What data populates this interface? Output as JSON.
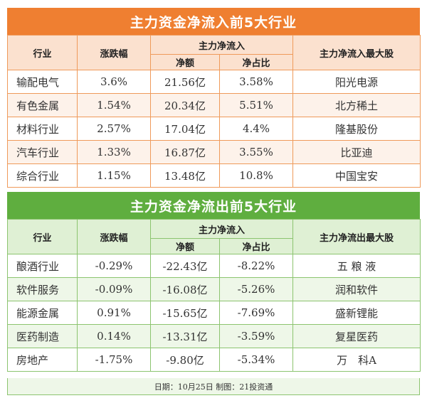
{
  "inflow": {
    "title": "主力资金净流入前5大行业",
    "headers": {
      "industry": "行业",
      "change": "涨跌幅",
      "group": "主力净流入",
      "net": "净额",
      "ratio": "净占比",
      "top_stock": "主力净流入最大股"
    },
    "rows": [
      {
        "industry": "输配电气",
        "change": "3.6%",
        "net": "21.56亿",
        "ratio": "3.58%",
        "stock": "阳光电源"
      },
      {
        "industry": "有色金属",
        "change": "1.54%",
        "net": "20.34亿",
        "ratio": "5.51%",
        "stock": "北方稀土"
      },
      {
        "industry": "材料行业",
        "change": "2.57%",
        "net": "17.04亿",
        "ratio": "4.4%",
        "stock": "隆基股份"
      },
      {
        "industry": "汽车行业",
        "change": "1.33%",
        "net": "16.87亿",
        "ratio": "3.55%",
        "stock": "比亚迪"
      },
      {
        "industry": "综合行业",
        "change": "1.15%",
        "net": "13.48亿",
        "ratio": "10.8%",
        "stock": "中国宝安"
      }
    ]
  },
  "outflow": {
    "title": "主力资金净流出前5大行业",
    "headers": {
      "industry": "行业",
      "change": "涨跌幅",
      "group": "主力净流入",
      "net": "净额",
      "ratio": "净占比",
      "top_stock": "主力净流出最大股"
    },
    "rows": [
      {
        "industry": "酿酒行业",
        "change": "-0.29%",
        "net": "-22.43亿",
        "ratio": "-8.22%",
        "stock": "五 粮 液"
      },
      {
        "industry": "软件服务",
        "change": "-0.09%",
        "net": "-16.08亿",
        "ratio": "-5.26%",
        "stock": "润和软件"
      },
      {
        "industry": "能源金属",
        "change": "0.91%",
        "net": "-15.65亿",
        "ratio": "-7.69%",
        "stock": "盛新锂能"
      },
      {
        "industry": "医药制造",
        "change": "0.14%",
        "net": "-13.31亿",
        "ratio": "-3.59%",
        "stock": "复星医药"
      },
      {
        "industry": "房地产",
        "change": "-1.75%",
        "net": "-9.80亿",
        "ratio": "-5.34%",
        "stock": "万　科A"
      }
    ]
  },
  "footer": "日期：10月25日  制图：21投资通",
  "colors": {
    "inflow_accent": "#ef7f31",
    "outflow_accent": "#5fae3f"
  }
}
